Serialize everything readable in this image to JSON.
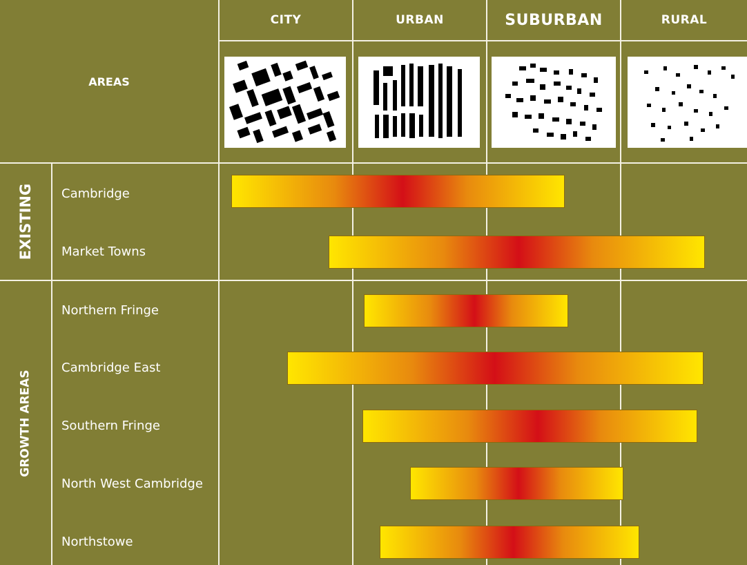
{
  "header": {
    "areas_label": "AREAS",
    "columns": [
      {
        "label": "CITY",
        "emphasis": false
      },
      {
        "label": "URBAN",
        "emphasis": false
      },
      {
        "label": "SUBURBAN",
        "emphasis": true
      },
      {
        "label": "RURAL",
        "emphasis": false
      }
    ],
    "thumbnails": [
      "city-figure-ground-icon",
      "urban-figure-ground-icon",
      "suburban-figure-ground-icon",
      "rural-figure-ground-icon"
    ]
  },
  "groups": [
    {
      "label": "EXISTING",
      "rows": [
        "Cambridge",
        "Market Towns"
      ]
    },
    {
      "label": "GROWTH AREAS",
      "rows": [
        "Northern Fringe",
        "Cambridge East",
        "Southern Fringe",
        "North West Cambridge",
        "Northstowe"
      ]
    }
  ],
  "density_ranges": [
    {
      "area": "Cambridge",
      "start": 0.09,
      "peak": 1.37,
      "end": 2.58
    },
    {
      "area": "Market Towns",
      "start": 0.82,
      "peak": 2.24,
      "end": 3.63
    },
    {
      "area": "Northern Fringe",
      "start": 1.08,
      "peak": 1.91,
      "end": 2.61
    },
    {
      "area": "Cambridge East",
      "start": 0.51,
      "peak": 2.06,
      "end": 3.62
    },
    {
      "area": "Southern Fringe",
      "start": 1.07,
      "peak": 2.38,
      "end": 3.57
    },
    {
      "area": "North West Cambridge",
      "start": 1.43,
      "peak": 2.24,
      "end": 3.02
    },
    {
      "area": "Northstowe",
      "start": 1.2,
      "peak": 2.2,
      "end": 3.14
    }
  ],
  "colors": {
    "background": "#817e35",
    "grid_line": "#f4f1e4",
    "gradient_edge": "#ffe600",
    "gradient_mid": "#e88a0e",
    "gradient_peak": "#d40f17"
  }
}
